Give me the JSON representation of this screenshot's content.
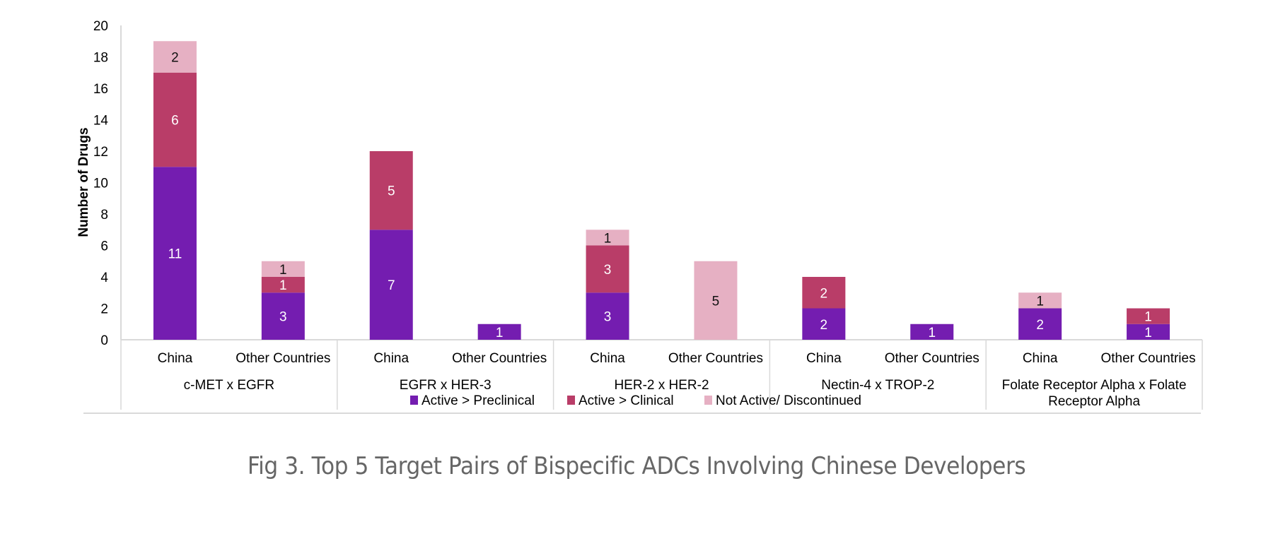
{
  "chart_data": {
    "type": "bar",
    "stacked": true,
    "title": "",
    "xlabel": "",
    "ylabel": "Number of Drugs",
    "ylim": [
      0,
      20
    ],
    "yticks": [
      0,
      2,
      4,
      6,
      8,
      10,
      12,
      14,
      16,
      18,
      20
    ],
    "grid": false,
    "legend_position": "bottom",
    "groups": [
      {
        "label": "c-MET x EGFR",
        "label_lines": [
          "c-MET x EGFR"
        ]
      },
      {
        "label": "EGFR x HER-3",
        "label_lines": [
          "EGFR x HER-3"
        ]
      },
      {
        "label": "HER-2 x HER-2",
        "label_lines": [
          "HER-2 x HER-2"
        ]
      },
      {
        "label": "Nectin-4 x TROP-2",
        "label_lines": [
          "Nectin-4 x TROP-2"
        ]
      },
      {
        "label": "Folate Receptor Alpha x Folate Receptor Alpha",
        "label_lines": [
          "Folate Receptor Alpha x Folate",
          "Receptor Alpha"
        ]
      }
    ],
    "categories": [
      "China",
      "Other Countries",
      "China",
      "Other Countries",
      "China",
      "Other Countries",
      "China",
      "Other Countries",
      "China",
      "Other Countries"
    ],
    "series": [
      {
        "name": "Active > Preclinical",
        "color": "#741db0",
        "label_color": "#ffffff",
        "values": [
          11,
          3,
          7,
          1,
          3,
          0,
          2,
          1,
          2,
          1
        ]
      },
      {
        "name": "Active > Clinical",
        "color": "#b93d68",
        "label_color": "#ffffff",
        "values": [
          6,
          1,
          5,
          0,
          3,
          0,
          2,
          0,
          0,
          1
        ]
      },
      {
        "name": "Not Active/ Discontinued",
        "color": "#e6b0c3",
        "label_color": "#111111",
        "values": [
          2,
          1,
          0,
          0,
          1,
          5,
          0,
          0,
          1,
          0
        ]
      }
    ]
  },
  "caption": "Fig 3. Top 5 Target Pairs of Bispecific ADCs Involving Chinese Developers"
}
